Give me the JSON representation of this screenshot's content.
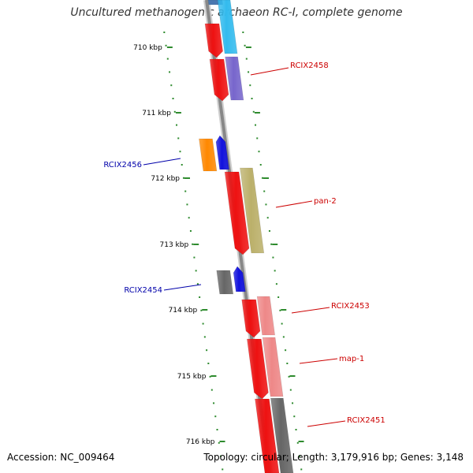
{
  "title": "Uncultured methanogenic archaeon RC-I, complete genome",
  "footer": {
    "accession": "Accession: NC_009464",
    "stats": "Topology: circular; Length: 3,179,916 bp; Genes: 3,148"
  },
  "scale_labels": [
    "710 kbp",
    "711 kbp",
    "712 kbp",
    "713 kbp",
    "714 kbp",
    "715 kbp",
    "716 kbp"
  ],
  "gene_labels": [
    {
      "text": "RCIX2458",
      "color": "#cc0000"
    },
    {
      "text": "RCIX2456",
      "color": "#0000aa"
    },
    {
      "text": "pan-2",
      "color": "#cc0000"
    },
    {
      "text": "RCIX2454",
      "color": "#0000aa"
    },
    {
      "text": "RCIX2453",
      "color": "#cc0000"
    },
    {
      "text": "map-1",
      "color": "#cc0000"
    },
    {
      "text": "RCIX2451",
      "color": "#cc0000"
    }
  ],
  "colors": {
    "backbone": "#888888",
    "scale_ticks": "#2e8b2e",
    "forward_gene": "#ee1111",
    "reverse_gene": "#1111dd",
    "cog_cyan": "#33bbee",
    "cog_purple": "#7766cc",
    "cog_orange": "#ff8800",
    "cog_olive": "#bbb06a",
    "cog_gray": "#666666",
    "cog_pink": "#ee8888"
  }
}
